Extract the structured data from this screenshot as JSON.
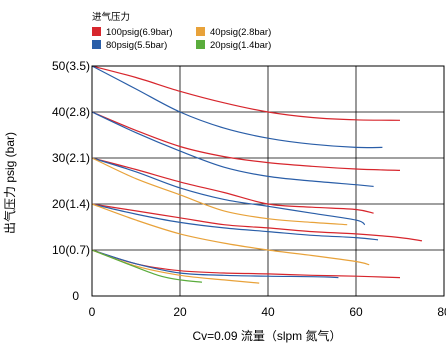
{
  "chart_data": {
    "type": "line",
    "xlabel": "Cv=0.09  流量（slpm 氮气）",
    "ylabel": "出气压力 psig (bar)",
    "xlim": [
      0,
      80
    ],
    "ylim": [
      0,
      50
    ],
    "x_ticks": [
      {
        "value": 0,
        "label": "0"
      },
      {
        "value": 20,
        "label": "20"
      },
      {
        "value": 40,
        "label": "40"
      },
      {
        "value": 60,
        "label": "60"
      },
      {
        "value": 80,
        "label": "80"
      }
    ],
    "y_ticks": [
      {
        "value": 0,
        "label": "0"
      },
      {
        "value": 10,
        "label": "10(0.7)"
      },
      {
        "value": 20,
        "label": "20(1.4)"
      },
      {
        "value": 30,
        "label": "30(2.1)"
      },
      {
        "value": 40,
        "label": "40(2.8)"
      },
      {
        "value": 50,
        "label": "50(3.5)"
      }
    ],
    "grid": true,
    "legend": {
      "title": "进气压力",
      "placement": "top-left",
      "entries": [
        {
          "name": "100psig(6.9bar)",
          "color": "#d7262d"
        },
        {
          "name": "40psig(2.8bar)",
          "color": "#e8a23a"
        },
        {
          "name": "80psig(5.5bar)",
          "color": "#2a5ea8"
        },
        {
          "name": "20psig(1.4bar)",
          "color": "#5aac3c"
        }
      ]
    },
    "series": [
      {
        "group": 0,
        "color": "#d7262d",
        "points": [
          [
            0,
            50
          ],
          [
            10,
            47.5
          ],
          [
            20,
            44.5
          ],
          [
            30,
            42
          ],
          [
            40,
            40
          ],
          [
            50,
            38.8
          ],
          [
            60,
            38.3
          ],
          [
            70,
            38.2
          ]
        ]
      },
      {
        "group": 1,
        "color": "#2a5ea8",
        "points": [
          [
            0,
            50
          ],
          [
            10,
            45
          ],
          [
            20,
            40
          ],
          [
            30,
            36.5
          ],
          [
            40,
            34.3
          ],
          [
            50,
            33
          ],
          [
            60,
            32.3
          ],
          [
            66,
            32.3
          ]
        ]
      },
      {
        "group": 0,
        "color": "#d7262d",
        "points": [
          [
            0,
            40
          ],
          [
            10,
            36
          ],
          [
            20,
            32.5
          ],
          [
            30,
            30.3
          ],
          [
            40,
            29
          ],
          [
            50,
            28.2
          ],
          [
            60,
            27.6
          ],
          [
            70,
            27.3
          ]
        ]
      },
      {
        "group": 1,
        "color": "#2a5ea8",
        "points": [
          [
            0,
            40
          ],
          [
            10,
            35.5
          ],
          [
            20,
            31.5
          ],
          [
            30,
            28
          ],
          [
            40,
            26
          ],
          [
            50,
            25
          ],
          [
            60,
            24.2
          ],
          [
            64,
            23.8
          ]
        ]
      },
      {
        "group": 0,
        "color": "#d7262d",
        "points": [
          [
            0,
            30
          ],
          [
            10,
            27.5
          ],
          [
            20,
            24.8
          ],
          [
            30,
            22.5
          ],
          [
            40,
            20
          ],
          [
            50,
            19.3
          ],
          [
            60,
            18.8
          ],
          [
            64,
            18
          ]
        ]
      },
      {
        "group": 1,
        "color": "#2a5ea8",
        "points": [
          [
            0,
            30
          ],
          [
            10,
            27
          ],
          [
            20,
            23.5
          ],
          [
            30,
            21
          ],
          [
            40,
            19.5
          ],
          [
            50,
            18
          ],
          [
            60,
            16.5
          ],
          [
            62,
            15.5
          ]
        ]
      },
      {
        "group": 2,
        "color": "#e8a23a",
        "points": [
          [
            0,
            30
          ],
          [
            10,
            25.5
          ],
          [
            20,
            22
          ],
          [
            30,
            18.5
          ],
          [
            40,
            16.8
          ],
          [
            50,
            16
          ],
          [
            58,
            15.5
          ]
        ]
      },
      {
        "group": 0,
        "color": "#d7262d",
        "points": [
          [
            0,
            20
          ],
          [
            10,
            18.5
          ],
          [
            20,
            17
          ],
          [
            30,
            15.5
          ],
          [
            40,
            14.8
          ],
          [
            50,
            14
          ],
          [
            60,
            13.5
          ],
          [
            70,
            12.7
          ],
          [
            75,
            12
          ]
        ]
      },
      {
        "group": 1,
        "color": "#2a5ea8",
        "points": [
          [
            0,
            20
          ],
          [
            10,
            17.8
          ],
          [
            20,
            16
          ],
          [
            30,
            14.8
          ],
          [
            40,
            14
          ],
          [
            50,
            13.2
          ],
          [
            60,
            12.7
          ],
          [
            65,
            12.2
          ]
        ]
      },
      {
        "group": 2,
        "color": "#e8a23a",
        "points": [
          [
            0,
            20
          ],
          [
            10,
            16.5
          ],
          [
            20,
            13.5
          ],
          [
            30,
            11.5
          ],
          [
            40,
            10
          ],
          [
            50,
            8.8
          ],
          [
            60,
            7.5
          ],
          [
            63,
            6.8
          ]
        ]
      },
      {
        "group": 0,
        "color": "#d7262d",
        "points": [
          [
            0,
            10
          ],
          [
            10,
            7
          ],
          [
            20,
            5.5
          ],
          [
            30,
            5
          ],
          [
            40,
            4.8
          ],
          [
            50,
            4.5
          ],
          [
            60,
            4.3
          ],
          [
            70,
            4
          ]
        ]
      },
      {
        "group": 1,
        "color": "#2a5ea8",
        "points": [
          [
            0,
            10
          ],
          [
            10,
            7
          ],
          [
            20,
            5
          ],
          [
            30,
            4.5
          ],
          [
            40,
            4.3
          ],
          [
            50,
            4.2
          ],
          [
            56,
            4
          ]
        ]
      },
      {
        "group": 2,
        "color": "#e8a23a",
        "points": [
          [
            0,
            10
          ],
          [
            10,
            6.5
          ],
          [
            20,
            4.5
          ],
          [
            30,
            3.5
          ],
          [
            38,
            2.8
          ]
        ]
      },
      {
        "group": 3,
        "color": "#5aac3c",
        "points": [
          [
            0,
            10
          ],
          [
            8,
            7
          ],
          [
            15,
            4.5
          ],
          [
            20,
            3.5
          ],
          [
            25,
            3
          ]
        ]
      }
    ]
  }
}
